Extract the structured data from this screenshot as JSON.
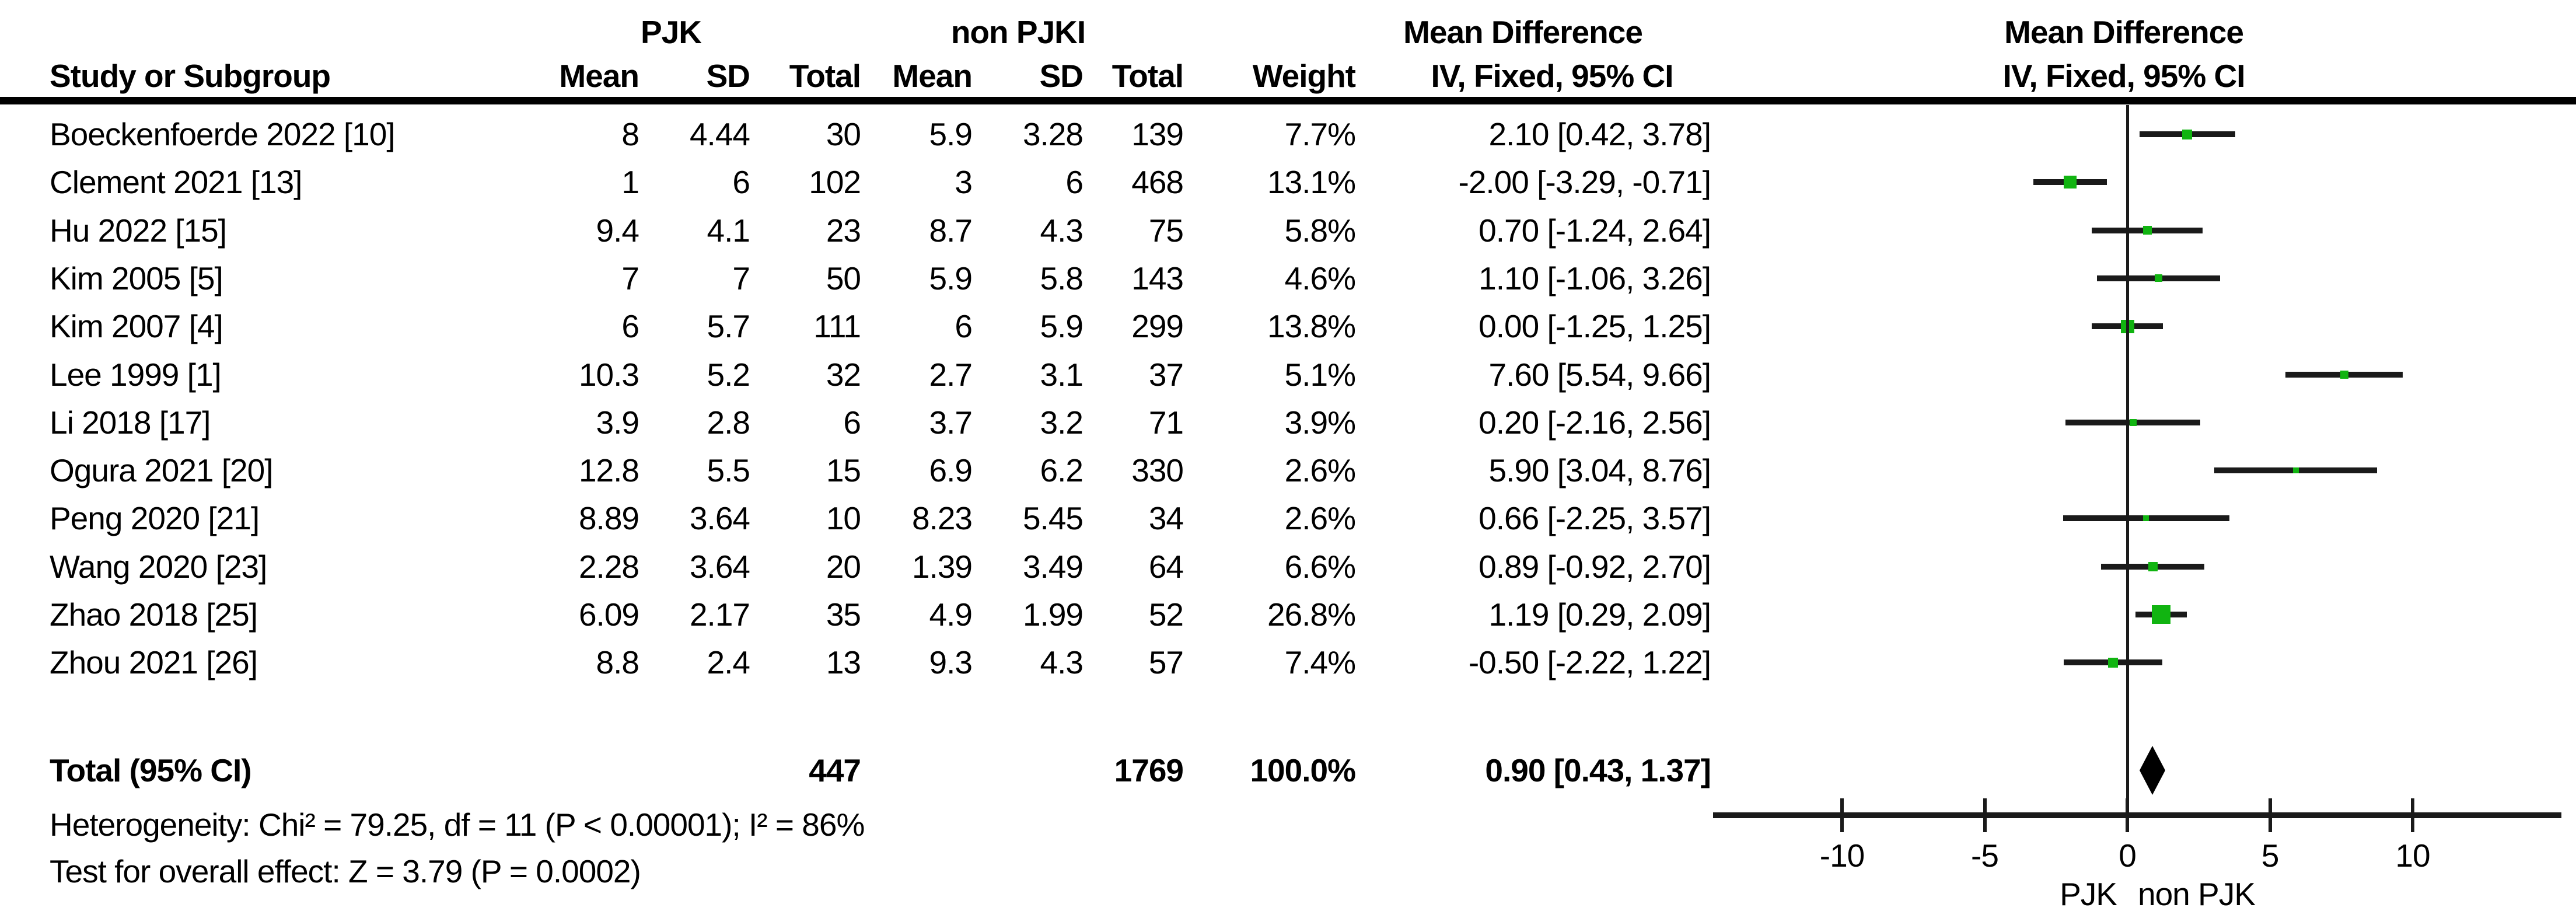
{
  "header": {
    "group_pjk": "PJK",
    "group_nonpjk": "non PJKI",
    "group_md_text": "Mean Difference",
    "group_md_plot": "Mean Difference",
    "study": "Study or Subgroup",
    "mean1": "Mean",
    "sd1": "SD",
    "total1": "Total",
    "mean2": "Mean",
    "sd2": "SD",
    "total2": "Total",
    "weight": "Weight",
    "ci": "IV, Fixed, 95% CI",
    "ci_plot": "IV, Fixed, 95% CI"
  },
  "chart_data": {
    "type": "forest",
    "effect_measure": "Mean Difference, IV, Fixed, 95% CI",
    "group_labels": [
      "PJK",
      "non PJKI"
    ],
    "colors": {
      "marker": "#11b411",
      "line": "#1a1a1a",
      "diamond": "#000000",
      "text": "#000000",
      "background": "#ffffff"
    },
    "studies": [
      {
        "name": "Boeckenfoerde 2022 [10]",
        "mean1": "8",
        "sd1": "4.44",
        "total1": "30",
        "mean2": "5.9",
        "sd2": "3.28",
        "total2": "139",
        "weight": "7.7%",
        "weight_value": 7.7,
        "ci_text": "2.10 [0.42, 3.78]",
        "md": 2.1,
        "lo": 0.42,
        "hi": 3.78
      },
      {
        "name": "Clement 2021 [13]",
        "mean1": "1",
        "sd1": "6",
        "total1": "102",
        "mean2": "3",
        "sd2": "6",
        "total2": "468",
        "weight": "13.1%",
        "weight_value": 13.1,
        "ci_text": "-2.00 [-3.29, -0.71]",
        "md": -2.0,
        "lo": -3.29,
        "hi": -0.71
      },
      {
        "name": "Hu 2022 [15]",
        "mean1": "9.4",
        "sd1": "4.1",
        "total1": "23",
        "mean2": "8.7",
        "sd2": "4.3",
        "total2": "75",
        "weight": "5.8%",
        "weight_value": 5.8,
        "ci_text": "0.70 [-1.24, 2.64]",
        "md": 0.7,
        "lo": -1.24,
        "hi": 2.64
      },
      {
        "name": "Kim 2005 [5]",
        "mean1": "7",
        "sd1": "7",
        "total1": "50",
        "mean2": "5.9",
        "sd2": "5.8",
        "total2": "143",
        "weight": "4.6%",
        "weight_value": 4.6,
        "ci_text": "1.10 [-1.06, 3.26]",
        "md": 1.1,
        "lo": -1.06,
        "hi": 3.26
      },
      {
        "name": "Kim 2007 [4]",
        "mean1": "6",
        "sd1": "5.7",
        "total1": "111",
        "mean2": "6",
        "sd2": "5.9",
        "total2": "299",
        "weight": "13.8%",
        "weight_value": 13.8,
        "ci_text": "0.00 [-1.25, 1.25]",
        "md": 0.0,
        "lo": -1.25,
        "hi": 1.25
      },
      {
        "name": "Lee 1999 [1]",
        "mean1": "10.3",
        "sd1": "5.2",
        "total1": "32",
        "mean2": "2.7",
        "sd2": "3.1",
        "total2": "37",
        "weight": "5.1%",
        "weight_value": 5.1,
        "ci_text": "7.60 [5.54, 9.66]",
        "md": 7.6,
        "lo": 5.54,
        "hi": 9.66
      },
      {
        "name": "Li 2018 [17]",
        "mean1": "3.9",
        "sd1": "2.8",
        "total1": "6",
        "mean2": "3.7",
        "sd2": "3.2",
        "total2": "71",
        "weight": "3.9%",
        "weight_value": 3.9,
        "ci_text": "0.20 [-2.16, 2.56]",
        "md": 0.2,
        "lo": -2.16,
        "hi": 2.56
      },
      {
        "name": "Ogura 2021 [20]",
        "mean1": "12.8",
        "sd1": "5.5",
        "total1": "15",
        "mean2": "6.9",
        "sd2": "6.2",
        "total2": "330",
        "weight": "2.6%",
        "weight_value": 2.6,
        "ci_text": "5.90 [3.04, 8.76]",
        "md": 5.9,
        "lo": 3.04,
        "hi": 8.76
      },
      {
        "name": "Peng 2020 [21]",
        "mean1": "8.89",
        "sd1": "3.64",
        "total1": "10",
        "mean2": "8.23",
        "sd2": "5.45",
        "total2": "34",
        "weight": "2.6%",
        "weight_value": 2.6,
        "ci_text": "0.66 [-2.25, 3.57]",
        "md": 0.66,
        "lo": -2.25,
        "hi": 3.57
      },
      {
        "name": "Wang 2020 [23]",
        "mean1": "2.28",
        "sd1": "3.64",
        "total1": "20",
        "mean2": "1.39",
        "sd2": "3.49",
        "total2": "64",
        "weight": "6.6%",
        "weight_value": 6.6,
        "ci_text": "0.89 [-0.92, 2.70]",
        "md": 0.89,
        "lo": -0.92,
        "hi": 2.7
      },
      {
        "name": "Zhao 2018 [25]",
        "mean1": "6.09",
        "sd1": "2.17",
        "total1": "35",
        "mean2": "4.9",
        "sd2": "1.99",
        "total2": "52",
        "weight": "26.8%",
        "weight_value": 26.8,
        "ci_text": "1.19 [0.29, 2.09]",
        "md": 1.19,
        "lo": 0.29,
        "hi": 2.09
      },
      {
        "name": "Zhou 2021 [26]",
        "mean1": "8.8",
        "sd1": "2.4",
        "total1": "13",
        "mean2": "9.3",
        "sd2": "4.3",
        "total2": "57",
        "weight": "7.4%",
        "weight_value": 7.4,
        "ci_text": "-0.50 [-2.22, 1.22]",
        "md": -0.5,
        "lo": -2.22,
        "hi": 1.22
      }
    ],
    "total": {
      "label": "Total (95% CI)",
      "total1": "447",
      "total2": "1769",
      "weight": "100.0%",
      "ci_text": "0.90 [0.43, 1.37]",
      "md": 0.9,
      "lo": 0.43,
      "hi": 1.37
    },
    "heterogeneity": "Heterogeneity: Chi² = 79.25, df = 11 (P < 0.00001); I² = 86%",
    "overall_effect": "Test for overall effect: Z = 3.79 (P = 0.0002)",
    "axis": {
      "xlim": [
        -14.5,
        15.2
      ],
      "ticks": [
        {
          "v": -10,
          "label": "-10"
        },
        {
          "v": -5,
          "label": "-5"
        },
        {
          "v": 0,
          "label": "0"
        },
        {
          "v": 5,
          "label": "5"
        },
        {
          "v": 10,
          "label": "10"
        }
      ],
      "favours_left": "PJK",
      "favours_right": "non PJK",
      "grid": false
    }
  }
}
